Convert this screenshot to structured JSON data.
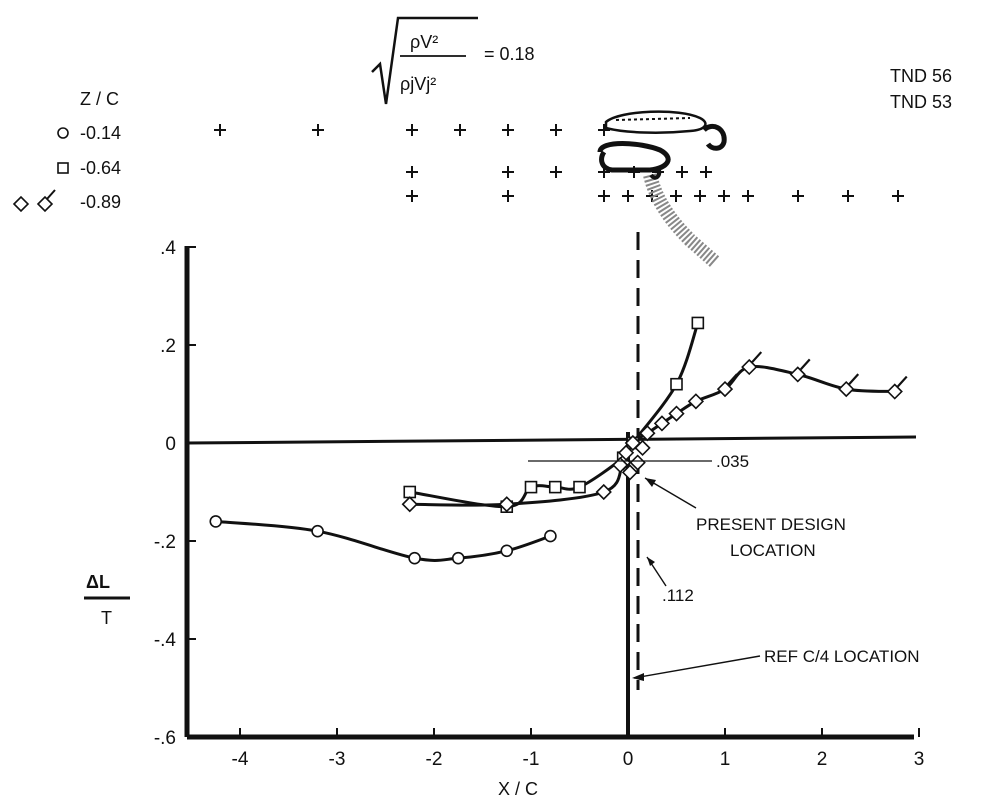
{
  "chart_data": {
    "type": "line",
    "title": "",
    "formula": {
      "numerator": "ρV²",
      "denominator": "ρjVj²",
      "value_text": "= 0.18"
    },
    "corner_refs": [
      "TND 56",
      "TND 53"
    ],
    "legend": {
      "header": "Z / C",
      "entries": [
        {
          "marker": "circle",
          "label": "-0.14"
        },
        {
          "marker": "square",
          "label": "-0.64"
        },
        {
          "marker": "diamond-flagged",
          "label": "-0.89"
        }
      ]
    },
    "xlabel": "X / C",
    "ylabel_num": "ΔL",
    "ylabel_den": "T",
    "xlim": [
      -4.3,
      3.0
    ],
    "ylim": [
      -0.6,
      0.4
    ],
    "x_ticks": [
      -4,
      -3,
      -2,
      -1,
      0,
      1,
      2,
      3
    ],
    "x_tick_labels": [
      "-4",
      "-3",
      "-2",
      "-1",
      "0",
      "1",
      "2",
      "3"
    ],
    "y_ticks": [
      0.4,
      0.2,
      0,
      -0.2,
      -0.4,
      -0.6
    ],
    "y_tick_labels": [
      ".4",
      ".2",
      "0",
      "-.2",
      "-.4",
      "-.6"
    ],
    "series": [
      {
        "name": "-0.14",
        "marker": "circle",
        "x": [
          -4.25,
          -3.2,
          -2.2,
          -1.75,
          -1.25,
          -0.8
        ],
        "y": [
          -0.16,
          -0.18,
          -0.235,
          -0.235,
          -0.22,
          -0.19
        ]
      },
      {
        "name": "-0.64",
        "marker": "square",
        "x": [
          -2.25,
          -1.25,
          -1.0,
          -0.75,
          -0.5,
          -0.05,
          0.05,
          0.5,
          0.72
        ],
        "y": [
          -0.1,
          -0.13,
          -0.09,
          -0.09,
          -0.09,
          -0.03,
          0.0,
          0.12,
          0.245
        ]
      },
      {
        "name": "-0.89",
        "marker": "diamond",
        "x": [
          -2.25,
          -1.25,
          -0.25,
          -0.05,
          0.05,
          0.2,
          0.35,
          0.5,
          0.7,
          1.0,
          1.25,
          1.75,
          2.25,
          2.75
        ],
        "y": [
          -0.125,
          -0.125,
          -0.1,
          -0.04,
          0.0,
          0.02,
          0.04,
          0.06,
          0.085,
          0.11,
          0.155,
          0.14,
          0.11,
          0.105
        ]
      }
    ],
    "scatter_cluster": [
      {
        "x": -0.08,
        "y": -0.045
      },
      {
        "x": 0.02,
        "y": -0.06
      },
      {
        "x": 0.1,
        "y": -0.04
      },
      {
        "x": -0.02,
        "y": -0.02
      },
      {
        "x": 0.15,
        "y": -0.01
      }
    ],
    "reference_lines": [
      {
        "label": "REF C/4 LOCATION",
        "x": 0.0
      },
      {
        "label": ".112",
        "x": 0.112
      }
    ],
    "annotations": [
      {
        "text": ".035"
      },
      {
        "text": "PRESENT DESIGN"
      },
      {
        "text": "LOCATION"
      },
      {
        "text": ".112"
      },
      {
        "text": "REF C/4 LOCATION"
      }
    ],
    "grid": false,
    "legend_position": "top-left"
  }
}
